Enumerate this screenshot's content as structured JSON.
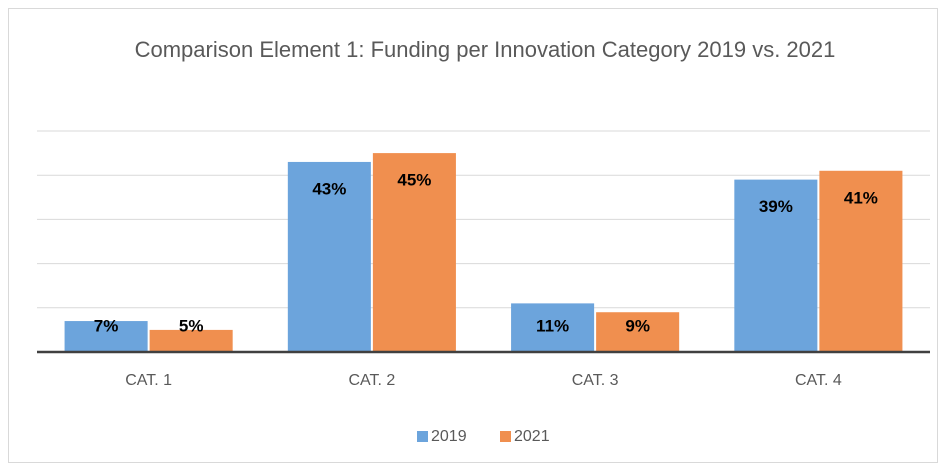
{
  "chart_data": {
    "type": "bar",
    "title": "Comparison Element 1: Funding per Innovation Category 2019 vs. 2021",
    "categories": [
      "CAT. 1",
      "CAT. 2",
      "CAT. 3",
      "CAT. 4"
    ],
    "series": [
      {
        "name": "2019",
        "color": "#6ca4dc",
        "values": [
          7,
          43,
          11,
          39
        ],
        "value_labels": [
          "7%",
          "43%",
          "11%",
          "39%"
        ]
      },
      {
        "name": "2021",
        "color": "#f08f4f",
        "values": [
          5,
          45,
          9,
          41
        ],
        "value_labels": [
          "5%",
          "45%",
          "9%",
          "41%"
        ]
      }
    ],
    "ylim": [
      0,
      50
    ],
    "yticks": [
      0,
      10,
      20,
      30,
      40,
      50
    ],
    "grid": true,
    "legend": "bottom"
  }
}
